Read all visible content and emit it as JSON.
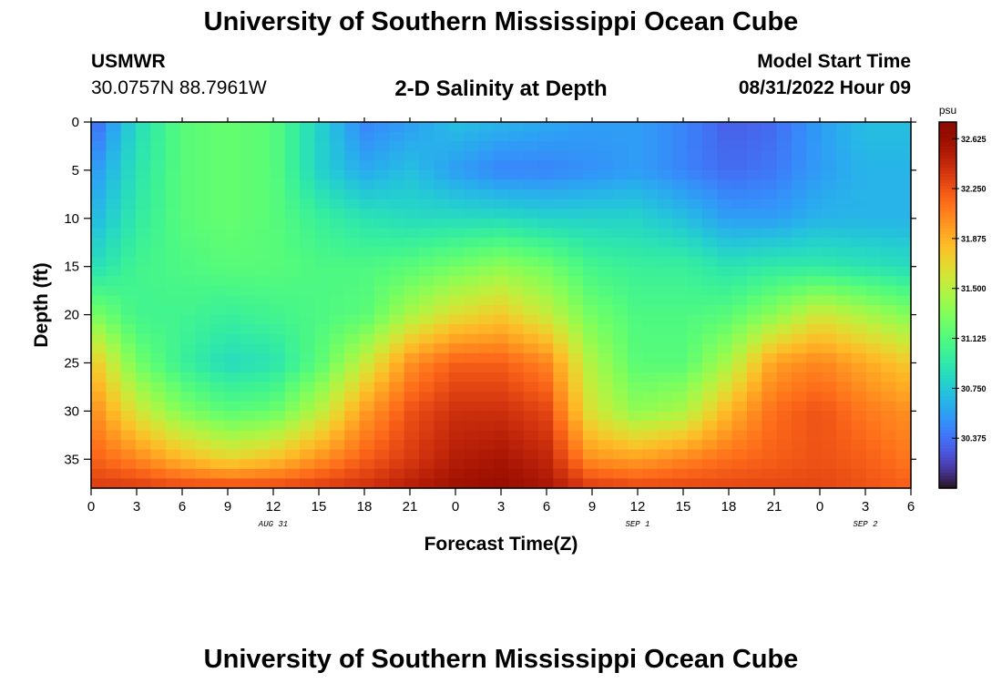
{
  "header": {
    "title": "University of Southern Mississippi Ocean Cube",
    "station_name": "USMWR",
    "station_coords": "30.0757N  88.7961W",
    "chart_subtitle": "2-D Salinity at Depth",
    "model_label": "Model Start Time",
    "model_time": "08/31/2022 Hour 09"
  },
  "footer": {
    "title": "University of Southern Mississippi Ocean Cube"
  },
  "chart_data": {
    "type": "heatmap",
    "title": "2-D Salinity at Depth",
    "xlabel": "Forecast Time(Z)",
    "ylabel": "Depth (ft)",
    "x_start_hour": 0,
    "x_step_hours": 1,
    "x_count": 55,
    "x_tick_labels": [
      "0",
      "3",
      "6",
      "9",
      "12",
      "15",
      "18",
      "21",
      "0",
      "3",
      "6",
      "9",
      "12",
      "15",
      "18",
      "21",
      "0",
      "3",
      "6"
    ],
    "date_labels": [
      {
        "text": "AUG 31",
        "hour": 12
      },
      {
        "text": "SEP 1",
        "hour": 36
      },
      {
        "text": "SEP 2",
        "hour": 51
      }
    ],
    "y_tick_labels": [
      "0",
      "5",
      "10",
      "15",
      "20",
      "25",
      "30",
      "35"
    ],
    "ylim": [
      0,
      38
    ],
    "y_inverted": true,
    "colorbar": {
      "unit": "psu",
      "min": 30.0,
      "max": 32.75,
      "ticks": [
        "32.625",
        "32.250",
        "31.875",
        "31.500",
        "31.125",
        "30.750",
        "30.375"
      ],
      "colormap": "turbo"
    },
    "depths_ft": [
      0,
      5,
      10,
      15,
      20,
      25,
      30,
      35,
      38
    ],
    "time_hours": [
      0,
      3,
      6,
      9,
      12,
      15,
      18,
      21,
      24,
      27,
      30,
      33,
      36,
      39,
      42,
      45,
      48,
      51,
      54
    ],
    "salinity_psu": [
      [
        30.3,
        30.85,
        31.15,
        31.2,
        31.15,
        30.8,
        30.45,
        30.55,
        30.7,
        30.65,
        30.6,
        30.55,
        30.55,
        30.45,
        30.3,
        30.35,
        30.55,
        30.7,
        30.7
      ],
      [
        30.5,
        30.9,
        31.15,
        31.2,
        31.15,
        30.8,
        30.6,
        30.7,
        30.55,
        30.45,
        30.45,
        30.5,
        30.55,
        30.45,
        30.35,
        30.4,
        30.55,
        30.65,
        30.65
      ],
      [
        30.65,
        30.95,
        31.15,
        31.2,
        31.15,
        31.0,
        30.9,
        30.85,
        30.85,
        30.85,
        30.8,
        30.8,
        30.8,
        30.7,
        30.55,
        30.55,
        30.65,
        30.65,
        30.65
      ],
      [
        30.85,
        31.05,
        31.1,
        31.15,
        31.15,
        31.1,
        31.1,
        31.15,
        31.25,
        31.35,
        31.25,
        31.05,
        31.0,
        31.0,
        30.9,
        30.95,
        30.95,
        30.9,
        30.85
      ],
      [
        31.3,
        31.05,
        31.05,
        31.0,
        31.05,
        31.1,
        31.15,
        31.45,
        31.65,
        31.75,
        31.55,
        31.25,
        31.1,
        31.1,
        31.15,
        31.35,
        31.6,
        31.45,
        31.3
      ],
      [
        31.8,
        31.25,
        31.0,
        30.85,
        30.9,
        31.15,
        31.55,
        32.0,
        32.2,
        32.2,
        32.05,
        31.45,
        31.15,
        31.15,
        31.45,
        31.95,
        32.05,
        31.9,
        31.75
      ],
      [
        32.05,
        31.6,
        31.3,
        31.15,
        31.2,
        31.5,
        31.95,
        32.25,
        32.4,
        32.4,
        32.3,
        31.6,
        31.35,
        31.45,
        31.85,
        32.15,
        32.25,
        32.1,
        32.0
      ],
      [
        32.2,
        32.05,
        31.85,
        31.7,
        31.8,
        32.0,
        32.2,
        32.35,
        32.5,
        32.55,
        32.45,
        32.0,
        31.95,
        32.05,
        32.15,
        32.2,
        32.25,
        32.2,
        32.1
      ],
      [
        32.35,
        32.35,
        32.3,
        32.3,
        32.3,
        32.35,
        32.4,
        32.5,
        32.6,
        32.65,
        32.55,
        32.35,
        32.3,
        32.3,
        32.3,
        32.3,
        32.3,
        32.25,
        32.2
      ]
    ]
  }
}
